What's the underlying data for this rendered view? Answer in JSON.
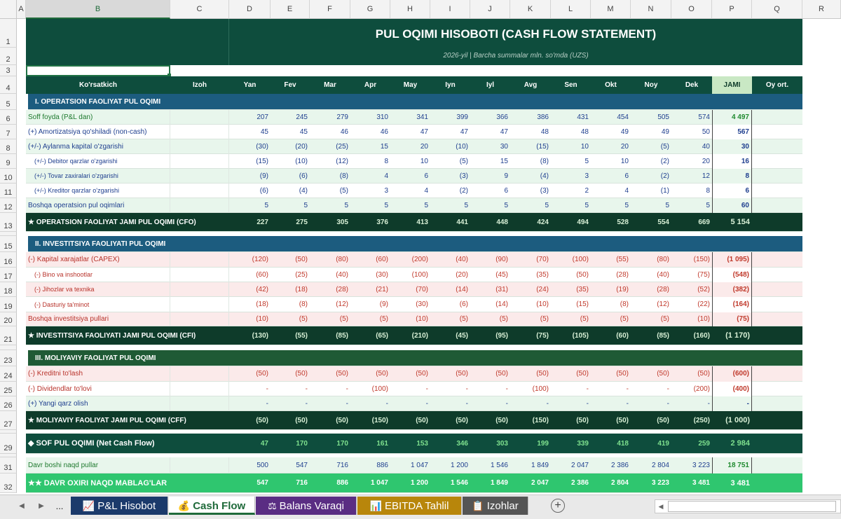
{
  "columns": [
    "A",
    "B",
    "C",
    "D",
    "E",
    "F",
    "G",
    "H",
    "I",
    "J",
    "K",
    "L",
    "M",
    "N",
    "O",
    "P",
    "Q",
    "R"
  ],
  "report": {
    "title": "PUL OQIMI HISOBOTI (CASH FLOW STATEMENT)",
    "subtitle": "2026-yil | Barcha summalar mln. so'mda (UZS)"
  },
  "header": {
    "indicator": "Ko'rsatkich",
    "note": "Izoh",
    "months": [
      "Yan",
      "Fev",
      "Mar",
      "Apr",
      "May",
      "Iyn",
      "Iyl",
      "Avg",
      "Sen",
      "Okt",
      "Noy",
      "Dek"
    ],
    "total": "JAMI",
    "avg": "Oy ort."
  },
  "rows": [
    {
      "n": "5",
      "type": "section",
      "style": "blue",
      "label": "I. OPERATSION FAOLIYAT PUL OQIMI"
    },
    {
      "n": "6",
      "type": "data",
      "bg": "#e8f6ec",
      "lc": "#1f7a2f",
      "label": "Soff foyda (P&L dan)",
      "indent": false,
      "vals": [
        "207",
        "245",
        "279",
        "310",
        "341",
        "399",
        "366",
        "386",
        "431",
        "454",
        "505",
        "574"
      ],
      "total": "4 497",
      "tc": "#1f8a2f"
    },
    {
      "n": "7",
      "type": "data",
      "bg": "#ffffff",
      "lc": "#1f3f8f",
      "label": "(+) Amortizatsiya qo'shiladi (non-cash)",
      "indent": false,
      "vals": [
        "45",
        "45",
        "46",
        "46",
        "47",
        "47",
        "47",
        "48",
        "48",
        "49",
        "49",
        "50"
      ],
      "total": "567",
      "tc": "#1f3f8f"
    },
    {
      "n": "8",
      "type": "data",
      "bg": "#e8f6ec",
      "lc": "#1f3f8f",
      "label": "(+/-) Aylanma kapital o'zgarishi",
      "indent": false,
      "vals": [
        "(30)",
        "(20)",
        "(25)",
        "15",
        "20",
        "(10)",
        "30",
        "(15)",
        "10",
        "20",
        "(5)",
        "40"
      ],
      "total": "30",
      "tc": "#1f3f8f"
    },
    {
      "n": "9",
      "type": "data",
      "bg": "#ffffff",
      "lc": "#1f3f8f",
      "label": "(+/-) Debitor qarzlar o'zgarishi",
      "indent": true,
      "vals": [
        "(15)",
        "(10)",
        "(12)",
        "8",
        "10",
        "(5)",
        "15",
        "(8)",
        "5",
        "10",
        "(2)",
        "20"
      ],
      "total": "16",
      "tc": "#1f3f8f"
    },
    {
      "n": "10",
      "type": "data",
      "bg": "#e8f6ec",
      "lc": "#1f3f8f",
      "label": "(+/-) Tovar zaxiralari o'zgarishi",
      "indent": true,
      "vals": [
        "(9)",
        "(6)",
        "(8)",
        "4",
        "6",
        "(3)",
        "9",
        "(4)",
        "3",
        "6",
        "(2)",
        "12"
      ],
      "total": "8",
      "tc": "#1f3f8f"
    },
    {
      "n": "11",
      "type": "data",
      "bg": "#ffffff",
      "lc": "#1f3f8f",
      "label": "(+/-) Kreditor qarzlar o'zgarishi",
      "indent": true,
      "vals": [
        "(6)",
        "(4)",
        "(5)",
        "3",
        "4",
        "(2)",
        "6",
        "(3)",
        "2",
        "4",
        "(1)",
        "8"
      ],
      "total": "6",
      "tc": "#1f3f8f"
    },
    {
      "n": "12",
      "type": "data",
      "bg": "#e8f6ec",
      "lc": "#1f3f8f",
      "label": "Boshqa operatsion pul oqimlari",
      "indent": false,
      "vals": [
        "5",
        "5",
        "5",
        "5",
        "5",
        "5",
        "5",
        "5",
        "5",
        "5",
        "5",
        "5"
      ],
      "total": "60",
      "tc": "#1f3f8f"
    },
    {
      "n": "13",
      "type": "total",
      "style": "dark",
      "label": "★ OPERATSION FAOLIYAT JAMI PUL OQIMI (CFO)",
      "vals": [
        "227",
        "275",
        "305",
        "376",
        "413",
        "441",
        "448",
        "424",
        "494",
        "528",
        "554",
        "669"
      ],
      "total": "5 154"
    },
    {
      "n": "15",
      "type": "section",
      "style": "blue",
      "label": "II. INVESTITSIYA FAOLIYATI PUL OQIMI"
    },
    {
      "n": "16",
      "type": "data",
      "bg": "#fbeaea",
      "lc": "#b8322a",
      "label": "(-) Kapital xarajatlar (CAPEX)",
      "indent": false,
      "vals": [
        "(120)",
        "(50)",
        "(80)",
        "(60)",
        "(200)",
        "(40)",
        "(90)",
        "(70)",
        "(100)",
        "(55)",
        "(80)",
        "(150)"
      ],
      "total": "(1 095)",
      "tc": "#c0392b"
    },
    {
      "n": "17",
      "type": "data",
      "bg": "#ffffff",
      "lc": "#b8322a",
      "label": "(-) Bino va inshootlar",
      "indent": true,
      "vals": [
        "(60)",
        "(25)",
        "(40)",
        "(30)",
        "(100)",
        "(20)",
        "(45)",
        "(35)",
        "(50)",
        "(28)",
        "(40)",
        "(75)"
      ],
      "total": "(548)",
      "tc": "#c0392b"
    },
    {
      "n": "18",
      "type": "data",
      "bg": "#fbeaea",
      "lc": "#b8322a",
      "label": "(-) Jihozlar va texnika",
      "indent": true,
      "vals": [
        "(42)",
        "(18)",
        "(28)",
        "(21)",
        "(70)",
        "(14)",
        "(31)",
        "(24)",
        "(35)",
        "(19)",
        "(28)",
        "(52)"
      ],
      "total": "(382)",
      "tc": "#c0392b"
    },
    {
      "n": "19",
      "type": "data",
      "bg": "#ffffff",
      "lc": "#b8322a",
      "label": "(-) Dasturiy ta'minot",
      "indent": true,
      "vals": [
        "(18)",
        "(8)",
        "(12)",
        "(9)",
        "(30)",
        "(6)",
        "(14)",
        "(10)",
        "(15)",
        "(8)",
        "(12)",
        "(22)"
      ],
      "total": "(164)",
      "tc": "#c0392b"
    },
    {
      "n": "20",
      "type": "data",
      "bg": "#fbeaea",
      "lc": "#b8322a",
      "label": "Boshqa investitsiya pullari",
      "indent": false,
      "vals": [
        "(10)",
        "(5)",
        "(5)",
        "(5)",
        "(10)",
        "(5)",
        "(5)",
        "(5)",
        "(5)",
        "(5)",
        "(5)",
        "(10)"
      ],
      "total": "(75)",
      "tc": "#c0392b"
    },
    {
      "n": "21",
      "type": "total",
      "style": "dark",
      "label": "★ INVESTITSIYA FAOLIYATI JAMI PUL OQIMI (CFI)",
      "vals": [
        "(130)",
        "(55)",
        "(85)",
        "(65)",
        "(210)",
        "(45)",
        "(95)",
        "(75)",
        "(105)",
        "(60)",
        "(85)",
        "(160)"
      ],
      "total": "(1 170)"
    },
    {
      "n": "23",
      "type": "section",
      "style": "green",
      "label": "III. MOLIYAVIY FAOLIYAT PUL OQIMI"
    },
    {
      "n": "24",
      "type": "data",
      "bg": "#fbeaea",
      "lc": "#b8322a",
      "label": "(-) Kreditni to'lash",
      "indent": false,
      "vals": [
        "(50)",
        "(50)",
        "(50)",
        "(50)",
        "(50)",
        "(50)",
        "(50)",
        "(50)",
        "(50)",
        "(50)",
        "(50)",
        "(50)"
      ],
      "total": "(600)",
      "tc": "#c0392b"
    },
    {
      "n": "25",
      "type": "data",
      "bg": "#ffffff",
      "lc": "#b8322a",
      "label": "(-) Dividendlar to'lovi",
      "indent": false,
      "vals": [
        "-",
        "-",
        "-",
        "(100)",
        "-",
        "-",
        "-",
        "(100)",
        "-",
        "-",
        "-",
        "(200)"
      ],
      "total": "(400)",
      "tc": "#c0392b"
    },
    {
      "n": "26",
      "type": "data",
      "bg": "#e8f6ec",
      "lc": "#1f3f8f",
      "label": "(+) Yangi qarz olish",
      "indent": false,
      "vals": [
        "-",
        "-",
        "-",
        "-",
        "-",
        "-",
        "-",
        "-",
        "-",
        "-",
        "-",
        "-"
      ],
      "total": "-",
      "tc": "#1f3f8f"
    },
    {
      "n": "27",
      "type": "total",
      "style": "dark",
      "label": "★ MOLIYAVIY FAOLIYAT JAMI PUL OQIMI (CFF)",
      "vals": [
        "(50)",
        "(50)",
        "(50)",
        "(150)",
        "(50)",
        "(50)",
        "(50)",
        "(150)",
        "(50)",
        "(50)",
        "(50)",
        "(250)"
      ],
      "total": "(1 000)"
    },
    {
      "n": "29",
      "type": "net",
      "label": "◆ SOF PUL OQIMI (Net Cash Flow)",
      "vals": [
        "47",
        "170",
        "170",
        "161",
        "153",
        "346",
        "303",
        "199",
        "339",
        "418",
        "419",
        "259"
      ],
      "total": "2 984"
    },
    {
      "n": "31",
      "type": "data",
      "bg": "#e8f6ec",
      "lc": "#1f7a2f",
      "label": "Davr boshi naqd pullar",
      "indent": false,
      "vals": [
        "500",
        "547",
        "716",
        "886",
        "1 047",
        "1 200",
        "1 546",
        "1 849",
        "2 047",
        "2 386",
        "2 804",
        "3 223"
      ],
      "total": "18 751",
      "tc": "#1f8a2f"
    },
    {
      "n": "32",
      "type": "bright",
      "label": "★★ DAVR OXIRI NAQD MABLAG'LAR",
      "vals": [
        "547",
        "716",
        "886",
        "1 047",
        "1 200",
        "1 546",
        "1 849",
        "2 047",
        "2 386",
        "2 804",
        "3 223",
        "3 481"
      ],
      "total": "3 481"
    }
  ],
  "tabs": [
    {
      "label": "P&L Hisobot",
      "icon": "chart-icon",
      "bg": "#1b3a6b",
      "fg": "#ffffff"
    },
    {
      "label": "Cash Flow",
      "icon": "money-bag-icon",
      "bg": "#ffffff",
      "fg": "#1f6a3a",
      "active": true
    },
    {
      "label": "Balans Varaqi",
      "icon": "scale-icon",
      "bg": "#5a2d83",
      "fg": "#ffffff"
    },
    {
      "label": "EBITDA Tahlil",
      "icon": "bar-chart-icon",
      "bg": "#b8860b",
      "fg": "#ffffff"
    },
    {
      "label": "Izohlar",
      "icon": "clipboard-icon",
      "bg": "#555555",
      "fg": "#ffffff"
    }
  ],
  "nav": {
    "more": "..."
  }
}
